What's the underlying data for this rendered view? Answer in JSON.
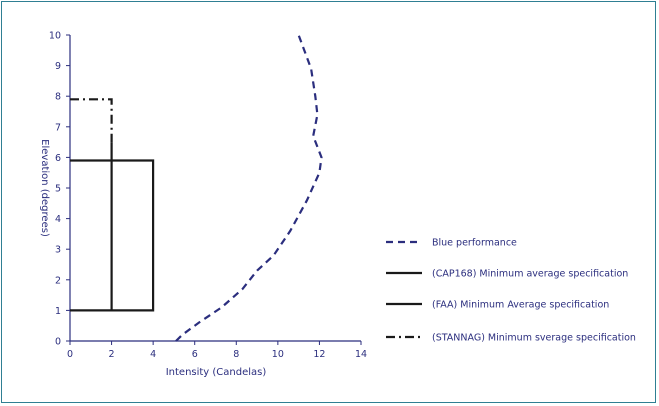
{
  "chart_data": {
    "type": "line",
    "xlabel": "Intensity  (Candelas)",
    "ylabel": "Elevation (degrees)",
    "xlim": [
      0,
      14
    ],
    "ylim": [
      0,
      10
    ],
    "x_ticks": [
      "0",
      "2",
      "4",
      "6",
      "8",
      "10",
      "12",
      "14"
    ],
    "y_ticks": [
      "0",
      "1",
      "2",
      "3",
      "4",
      "5",
      "6",
      "7",
      "8",
      "9",
      "10"
    ],
    "grid": false,
    "legend_position": "right",
    "series": [
      {
        "name": "Blue performance",
        "style": "dashed",
        "color": "#2b2e7e",
        "points": [
          [
            5.1,
            0
          ],
          [
            5.4,
            0.2
          ],
          [
            6.2,
            0.6
          ],
          [
            7.3,
            1.1
          ],
          [
            8.3,
            1.7
          ],
          [
            9.0,
            2.3
          ],
          [
            9.8,
            2.8
          ],
          [
            10.6,
            3.6
          ],
          [
            11.4,
            4.6
          ],
          [
            12.0,
            5.5
          ],
          [
            12.1,
            6.0
          ],
          [
            11.7,
            6.7
          ],
          [
            11.9,
            7.4
          ],
          [
            11.8,
            8.0
          ],
          [
            11.6,
            8.9
          ],
          [
            11.0,
            10.0
          ]
        ]
      },
      {
        "name": "(CAP168) Minimum average specification",
        "style": "solid",
        "color": "#1a1a1a",
        "points": [
          [
            0,
            5.9
          ],
          [
            4,
            5.9
          ],
          [
            4,
            1
          ],
          [
            0,
            1
          ]
        ]
      },
      {
        "name": "(FAA) Minimum Average specification",
        "style": "solid",
        "color": "#1a1a1a",
        "points": [
          [
            2,
            1
          ],
          [
            2,
            6.5
          ]
        ]
      },
      {
        "name": "(STANNAG) Minimum sverage specification",
        "style": "dash-dot",
        "color": "#1a1a1a",
        "points": [
          [
            0,
            7.9
          ],
          [
            2,
            7.9
          ],
          [
            2,
            6.5
          ]
        ]
      }
    ]
  }
}
